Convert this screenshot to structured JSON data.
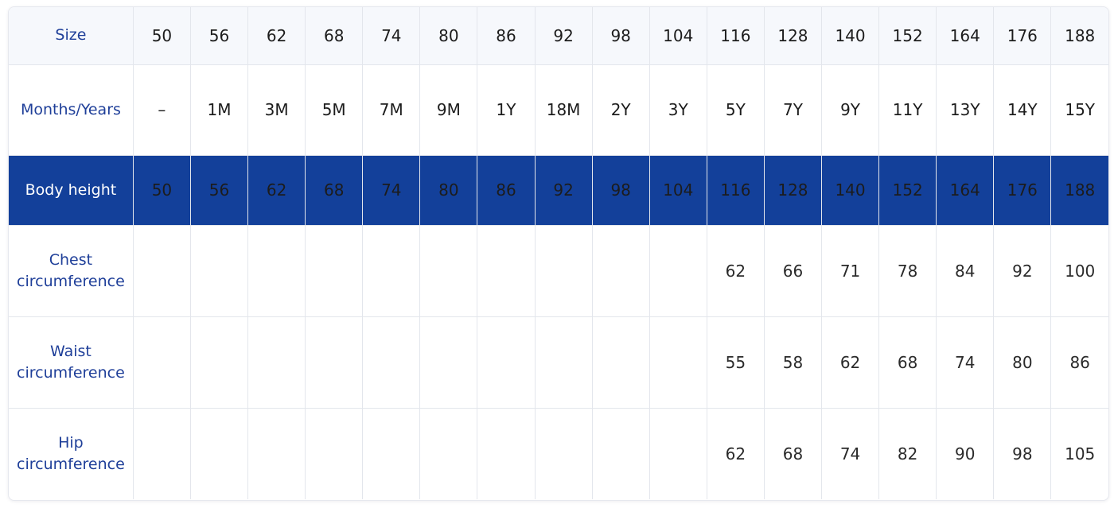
{
  "table": {
    "rows": [
      {
        "label": "Size",
        "cells": [
          "50",
          "56",
          "62",
          "68",
          "74",
          "80",
          "86",
          "92",
          "98",
          "104",
          "116",
          "128",
          "140",
          "152",
          "164",
          "176",
          "188"
        ]
      },
      {
        "label": "Months/Years",
        "cells": [
          "–",
          "1M",
          "3M",
          "5M",
          "7M",
          "9M",
          "1Y",
          "18M",
          "2Y",
          "3Y",
          "5Y",
          "7Y",
          "9Y",
          "11Y",
          "13Y",
          "14Y",
          "15Y"
        ]
      },
      {
        "label": "Body height",
        "cells": [
          "50",
          "56",
          "62",
          "68",
          "74",
          "80",
          "86",
          "92",
          "98",
          "104",
          "116",
          "128",
          "140",
          "152",
          "164",
          "176",
          "188"
        ]
      },
      {
        "label_line1": "Chest",
        "label_line2": "circumference",
        "cells": [
          "",
          "",
          "",
          "",
          "",
          "",
          "",
          "",
          "",
          "",
          "62",
          "66",
          "71",
          "78",
          "84",
          "92",
          "100"
        ]
      },
      {
        "label_line1": "Waist",
        "label_line2": "circumference",
        "cells": [
          "",
          "",
          "",
          "",
          "",
          "",
          "",
          "",
          "",
          "",
          "55",
          "58",
          "62",
          "68",
          "74",
          "80",
          "86"
        ]
      },
      {
        "label_line1": "Hip",
        "label_line2": "circumference",
        "cells": [
          "",
          "",
          "",
          "",
          "",
          "",
          "",
          "",
          "",
          "",
          "62",
          "68",
          "74",
          "82",
          "90",
          "98",
          "105"
        ]
      }
    ]
  },
  "colors": {
    "accent_blue": "#13409a",
    "label_blue": "#1f3f99",
    "header_background": "#f6f8fc",
    "grid_line": "#e3e6ec"
  }
}
